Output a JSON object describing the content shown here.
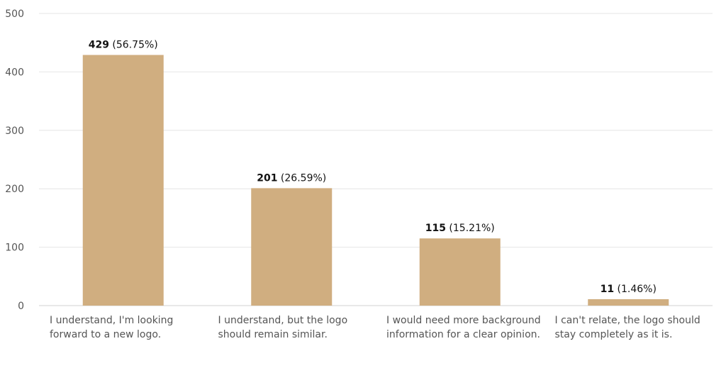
{
  "chart_data": {
    "type": "bar",
    "categories": [
      [
        "I understand, I'm looking",
        "forward to a new logo."
      ],
      [
        "I understand, but the logo",
        "should remain similar."
      ],
      [
        "I would need more background",
        "information for a clear opinion."
      ],
      [
        "I can't relate, the logo should",
        "stay completely as it is."
      ]
    ],
    "values": [
      429,
      201,
      115,
      11
    ],
    "percentages": [
      "(56.75%)",
      "(26.59%)",
      "(15.21%)",
      "(1.46%)"
    ],
    "title": "",
    "xlabel": "",
    "ylabel": "",
    "ylim": [
      0,
      500
    ],
    "yticks": [
      0,
      100,
      200,
      300,
      400,
      500
    ],
    "grid": true,
    "bar_color": "#d0ae80"
  }
}
